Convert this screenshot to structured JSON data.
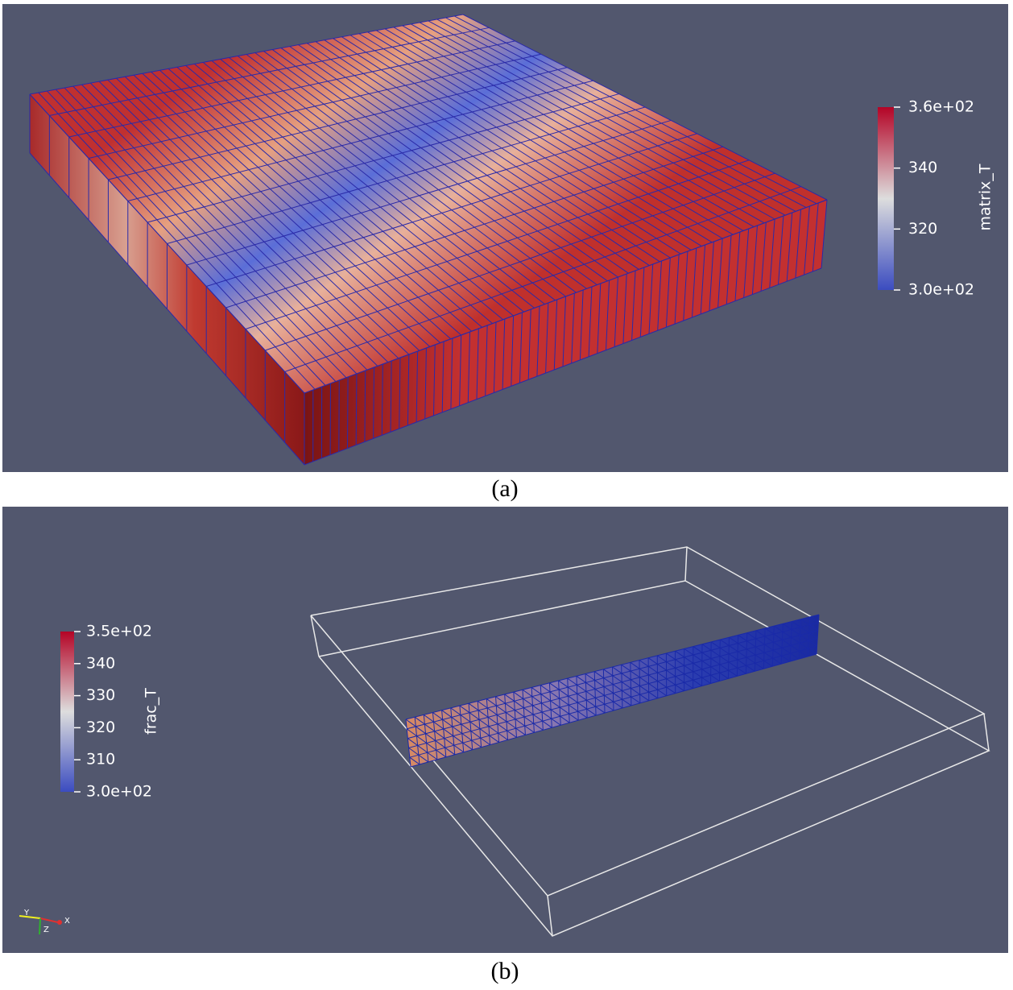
{
  "panels": [
    {
      "caption": "(a)",
      "colorbar": {
        "title": "matrix_T",
        "range": [
          300,
          360
        ],
        "ticks": [
          {
            "value": 360,
            "label": "3.6e+02"
          },
          340,
          320,
          {
            "value": 300,
            "label": "3.0e+02"
          }
        ]
      }
    },
    {
      "caption": "(b)",
      "colorbar": {
        "title": "frac_T",
        "range": [
          300,
          350
        ],
        "ticks": [
          {
            "value": 350,
            "label": "3.5e+02"
          },
          340,
          330,
          320,
          310,
          {
            "value": 300,
            "label": "3.0e+02"
          }
        ]
      }
    }
  ],
  "axes_triad": {
    "x": "X",
    "y": "Y",
    "z": "Z"
  }
}
